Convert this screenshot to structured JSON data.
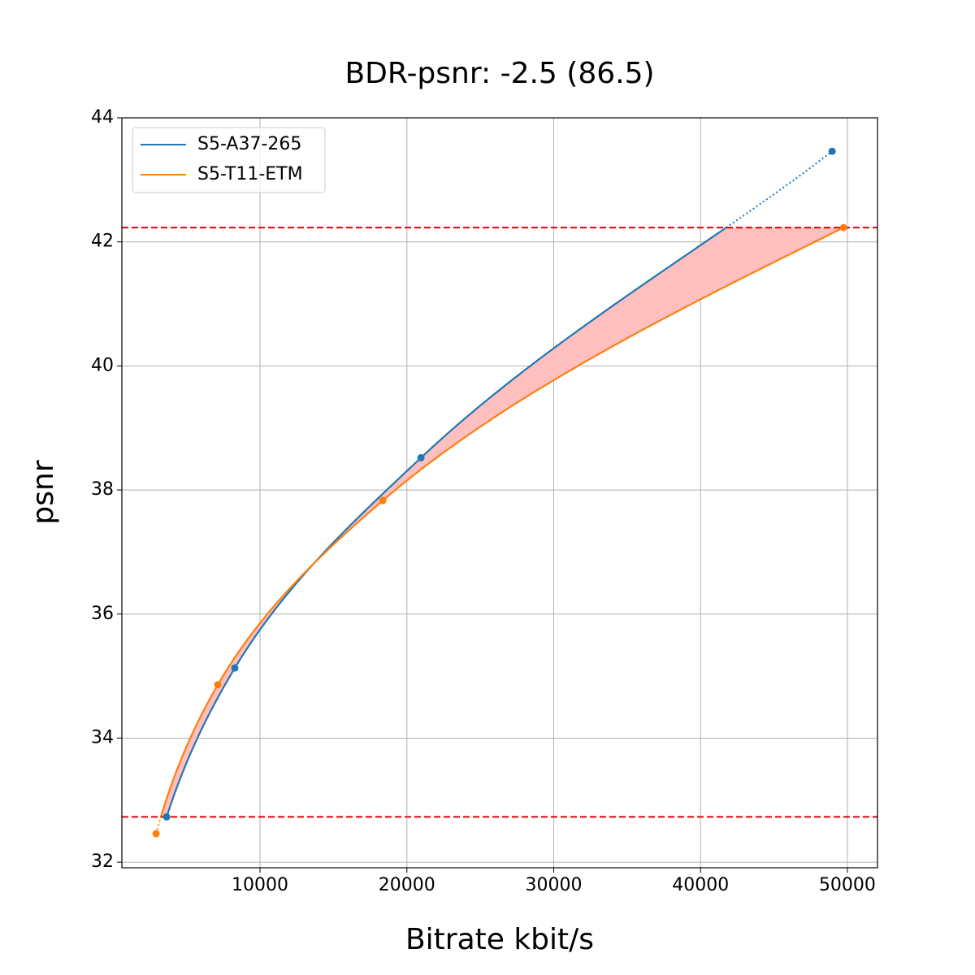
{
  "chart_data": {
    "type": "scatter",
    "title": "BDR-psnr: -2.5 (86.5)",
    "x_label": "Bitrate kbit/s",
    "y_label": "psnr",
    "series": [
      {
        "name": "S5-A37-265",
        "color": "#1f77b4",
        "x": [
          3640,
          8280,
          20960,
          48960
        ],
        "values": [
          32.73,
          35.13,
          38.52,
          43.46
        ]
      },
      {
        "name": "S5-T11-ETM",
        "color": "#ff7f0e",
        "x": [
          2920,
          7120,
          18360,
          49740
        ],
        "values": [
          32.46,
          34.86,
          37.83,
          42.23
        ]
      }
    ],
    "reference_lines": [
      32.73,
      42.23
    ],
    "reference_color": "#e00000",
    "fill_color": "#ffbfbf",
    "xlim": [
      590,
      52050
    ],
    "ylim": [
      31.91,
      44.0
    ],
    "xticks": [
      10000,
      20000,
      30000,
      40000,
      50000
    ],
    "yticks": [
      32,
      34,
      36,
      38,
      40,
      42,
      44
    ],
    "grid": true,
    "legend": "upper left"
  }
}
